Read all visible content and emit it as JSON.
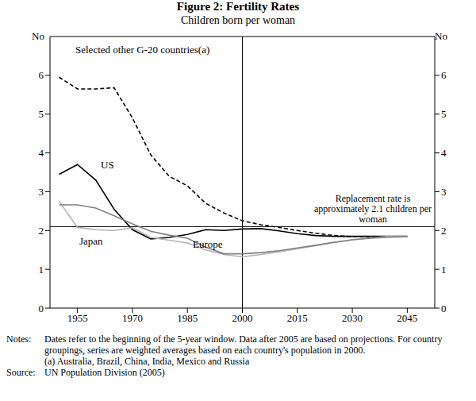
{
  "chart_data": {
    "type": "line",
    "title": "Figure 2: Fertility Rates",
    "subtitle": "Children born per woman",
    "y_label": "No",
    "y2_label": "No",
    "x": [
      1950,
      1955,
      1960,
      1965,
      1970,
      1975,
      1980,
      1985,
      1990,
      1995,
      2000,
      2005,
      2010,
      2015,
      2020,
      2025,
      2030,
      2035,
      2040,
      2045
    ],
    "series": [
      {
        "name": "Selected other G-20 countries(a)",
        "color": "#000000",
        "line_style": "dashed",
        "values": [
          5.95,
          5.65,
          5.65,
          5.68,
          4.9,
          3.95,
          3.4,
          3.15,
          2.7,
          2.45,
          2.25,
          2.15,
          2.08,
          2.0,
          1.93,
          1.87,
          1.84,
          1.84,
          1.84,
          1.84
        ]
      },
      {
        "name": "US",
        "color": "#000000",
        "line_style": "solid",
        "values": [
          3.45,
          3.7,
          3.3,
          2.55,
          2.02,
          1.78,
          1.82,
          1.9,
          2.02,
          2.0,
          2.04,
          2.05,
          1.99,
          1.92,
          1.87,
          1.85,
          1.85,
          1.85,
          1.85,
          1.85
        ]
      },
      {
        "name": "Japan",
        "color": "#b3b3b3",
        "line_style": "solid",
        "values": [
          2.75,
          2.08,
          2.02,
          2.0,
          2.07,
          1.82,
          1.75,
          1.68,
          1.5,
          1.38,
          1.32,
          1.38,
          1.45,
          1.53,
          1.61,
          1.69,
          1.76,
          1.81,
          1.85,
          1.85
        ]
      },
      {
        "name": "Europe",
        "color": "#808080",
        "line_style": "solid",
        "values": [
          2.66,
          2.66,
          2.58,
          2.38,
          2.17,
          1.98,
          1.88,
          1.8,
          1.57,
          1.4,
          1.4,
          1.43,
          1.48,
          1.55,
          1.62,
          1.7,
          1.76,
          1.8,
          1.83,
          1.84
        ]
      }
    ],
    "xlim": [
      1947.5,
      2052.5
    ],
    "xticks": [
      1955,
      1970,
      1985,
      2000,
      2015,
      2030,
      2045
    ],
    "ylim": [
      0,
      7
    ],
    "yticks": [
      0,
      1,
      2,
      3,
      4,
      5,
      6
    ],
    "y2lim": [
      0,
      7
    ],
    "y2ticks": [
      0,
      1,
      2,
      3,
      4,
      5,
      6
    ],
    "vertical_line": 2000,
    "reference_line": {
      "value": 2.1,
      "label": "Replacement rate is approximately 2.1 children per woman"
    },
    "legend": false,
    "grid": false,
    "notes_label": "Notes:",
    "notes": [
      "Dates refer to the beginning of the 5-year window. Data after 2005 are based on projections. For country groupings, series are weighted averages based on each country's population in 2000.",
      "(a) Australia, Brazil, China, India, Mexico and Russia"
    ],
    "source_label": "Source:",
    "source": "UN Population Division (2005)"
  }
}
